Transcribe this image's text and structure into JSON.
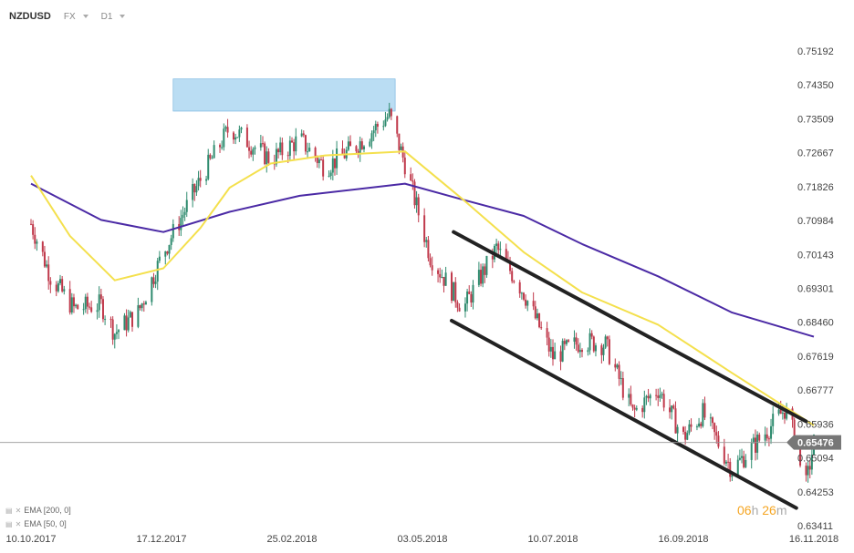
{
  "toolbar": {
    "symbol": "NZDUSD",
    "market": "FX",
    "timeframe": "D1"
  },
  "legend": {
    "ema200": "EMA [200, 0]",
    "ema50": "EMA [50, 0]"
  },
  "timer": {
    "hours": "06",
    "h": "h",
    "minutes": "26",
    "m": "m"
  },
  "colors": {
    "up_candle": "#2e8b6e",
    "down_candle": "#c0394b",
    "ema200": "#4b2aa5",
    "ema50": "#f4e04d",
    "channel": "#222222",
    "resistance_box": "#a9d4f0",
    "price_line": "#999999",
    "price_label_bg": "#777777"
  },
  "chart_data": {
    "type": "candlestick",
    "title": "",
    "xlabel": "",
    "ylabel": "",
    "x_tick_labels": [
      "10.10.2017",
      "17.12.2017",
      "25.02.2018",
      "03.05.2018",
      "10.07.2018",
      "16.09.2018",
      "16.11.2018"
    ],
    "y_tick_labels": [
      "0.75192",
      "0.74350",
      "0.73509",
      "0.72667",
      "0.71826",
      "0.70984",
      "0.70143",
      "0.69301",
      "0.68460",
      "0.67619",
      "0.66777",
      "0.65936",
      "0.65094",
      "0.64253",
      "0.63411"
    ],
    "ylim": [
      0.63411,
      0.75192
    ],
    "current_price": "0.65476",
    "x_range": [
      "2017-10-10",
      "2018-11-16"
    ],
    "close_series": [
      {
        "date": "2017-10-10",
        "close": 0.709
      },
      {
        "date": "2017-10-20",
        "close": 0.696
      },
      {
        "date": "2017-11-01",
        "close": 0.688
      },
      {
        "date": "2017-11-15",
        "close": 0.689
      },
      {
        "date": "2017-11-22",
        "close": 0.682
      },
      {
        "date": "2017-12-04",
        "close": 0.687
      },
      {
        "date": "2017-12-17",
        "close": 0.702
      },
      {
        "date": "2018-01-05",
        "close": 0.72
      },
      {
        "date": "2018-01-20",
        "close": 0.733
      },
      {
        "date": "2018-02-10",
        "close": 0.725
      },
      {
        "date": "2018-02-25",
        "close": 0.73
      },
      {
        "date": "2018-03-10",
        "close": 0.723
      },
      {
        "date": "2018-03-25",
        "close": 0.728
      },
      {
        "date": "2018-04-12",
        "close": 0.736
      },
      {
        "date": "2018-04-20",
        "close": 0.724
      },
      {
        "date": "2018-05-03",
        "close": 0.701
      },
      {
        "date": "2018-05-20",
        "close": 0.688
      },
      {
        "date": "2018-06-06",
        "close": 0.703
      },
      {
        "date": "2018-06-20",
        "close": 0.692
      },
      {
        "date": "2018-07-05",
        "close": 0.676
      },
      {
        "date": "2018-07-20",
        "close": 0.68
      },
      {
        "date": "2018-08-01",
        "close": 0.679
      },
      {
        "date": "2018-08-15",
        "close": 0.662
      },
      {
        "date": "2018-08-28",
        "close": 0.668
      },
      {
        "date": "2018-09-10",
        "close": 0.656
      },
      {
        "date": "2018-09-20",
        "close": 0.662
      },
      {
        "date": "2018-10-05",
        "close": 0.648
      },
      {
        "date": "2018-10-20",
        "close": 0.656
      },
      {
        "date": "2018-11-01",
        "close": 0.663
      },
      {
        "date": "2018-11-08",
        "close": 0.654
      },
      {
        "date": "2018-11-12",
        "close": 0.644
      },
      {
        "date": "2018-11-16",
        "close": 0.6548
      }
    ],
    "ema200_series": [
      {
        "date": "2017-10-10",
        "value": 0.719
      },
      {
        "date": "2017-11-15",
        "value": 0.71
      },
      {
        "date": "2017-12-17",
        "value": 0.707
      },
      {
        "date": "2018-01-20",
        "value": 0.712
      },
      {
        "date": "2018-02-25",
        "value": 0.716
      },
      {
        "date": "2018-04-20",
        "value": 0.719
      },
      {
        "date": "2018-05-20",
        "value": 0.715
      },
      {
        "date": "2018-06-20",
        "value": 0.711
      },
      {
        "date": "2018-07-20",
        "value": 0.704
      },
      {
        "date": "2018-08-28",
        "value": 0.696
      },
      {
        "date": "2018-10-05",
        "value": 0.687
      },
      {
        "date": "2018-11-16",
        "value": 0.681
      }
    ],
    "ema50_series": [
      {
        "date": "2017-10-10",
        "value": 0.721
      },
      {
        "date": "2017-10-30",
        "value": 0.706
      },
      {
        "date": "2017-11-22",
        "value": 0.695
      },
      {
        "date": "2017-12-17",
        "value": 0.698
      },
      {
        "date": "2018-01-05",
        "value": 0.708
      },
      {
        "date": "2018-01-20",
        "value": 0.718
      },
      {
        "date": "2018-02-10",
        "value": 0.724
      },
      {
        "date": "2018-03-10",
        "value": 0.726
      },
      {
        "date": "2018-04-20",
        "value": 0.727
      },
      {
        "date": "2018-05-20",
        "value": 0.715
      },
      {
        "date": "2018-06-20",
        "value": 0.702
      },
      {
        "date": "2018-07-20",
        "value": 0.692
      },
      {
        "date": "2018-08-28",
        "value": 0.684
      },
      {
        "date": "2018-10-05",
        "value": 0.672
      },
      {
        "date": "2018-11-16",
        "value": 0.659
      }
    ],
    "annotations": {
      "resistance_zone": {
        "from": "2017-12-22",
        "to": "2018-04-15",
        "low": 0.737,
        "high": 0.745
      },
      "channel_upper": [
        {
          "date": "2018-05-15",
          "price": 0.707
        },
        {
          "date": "2018-11-12",
          "price": 0.66
        }
      ],
      "channel_lower": [
        {
          "date": "2018-05-14",
          "price": 0.685
        },
        {
          "date": "2018-11-07",
          "price": 0.6385
        }
      ]
    }
  }
}
